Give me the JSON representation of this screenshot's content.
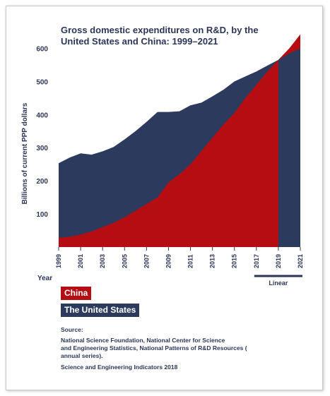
{
  "colors": {
    "china": "#b50d12",
    "us": "#2c3a5e",
    "text": "#2c3658",
    "axis": "#2c3658"
  },
  "source_label": "Source:",
  "source_lines": [
    "National Science Foundation, National Center for Science",
    "and Engineering Statistics, National Patterns of R&D Resources (",
    "annual series)."
  ],
  "source_report": "Science and Engineering Indicators 2018",
  "chart_data": {
    "type": "area",
    "title_lines": [
      "Gross domestic expenditures on R&D, by the",
      "United States and China: 1999–2021"
    ],
    "ylabel": "Billions of current PPP dollars",
    "xlabel": "Year",
    "ylim": [
      0,
      650
    ],
    "yticks": [
      100,
      200,
      300,
      400,
      500,
      600
    ],
    "xticks": [
      "1999",
      "2001",
      "2003",
      "2005",
      "2007",
      "2009",
      "2011",
      "2013",
      "2015",
      "2017",
      "2019",
      "2021"
    ],
    "projection_label": "Linear",
    "projection_range": [
      2017,
      2021
    ],
    "series": [
      {
        "name": "The United States",
        "x": [
          1999,
          2000,
          2001,
          2002,
          2003,
          2004,
          2005,
          2006,
          2007,
          2008,
          2009,
          2010,
          2011,
          2012,
          2013,
          2014,
          2015,
          2016,
          2017,
          2018,
          2019,
          2020,
          2021
        ],
        "values": [
          253,
          270,
          283,
          279,
          289,
          302,
          325,
          350,
          378,
          408,
          408,
          410,
          428,
          436,
          455,
          475,
          500,
          515,
          530,
          548,
          565,
          585,
          600
        ]
      },
      {
        "name": "China",
        "x": [
          1999,
          2000,
          2001,
          2002,
          2003,
          2004,
          2005,
          2006,
          2007,
          2008,
          2009,
          2010,
          2011,
          2012,
          2013,
          2014,
          2015,
          2016,
          2017,
          2018,
          2019,
          2020,
          2021
        ],
        "values": [
          28,
          31,
          38,
          47,
          60,
          73,
          90,
          110,
          130,
          150,
          195,
          220,
          250,
          290,
          330,
          370,
          405,
          450,
          490,
          530,
          565,
          600,
          642
        ]
      }
    ]
  }
}
